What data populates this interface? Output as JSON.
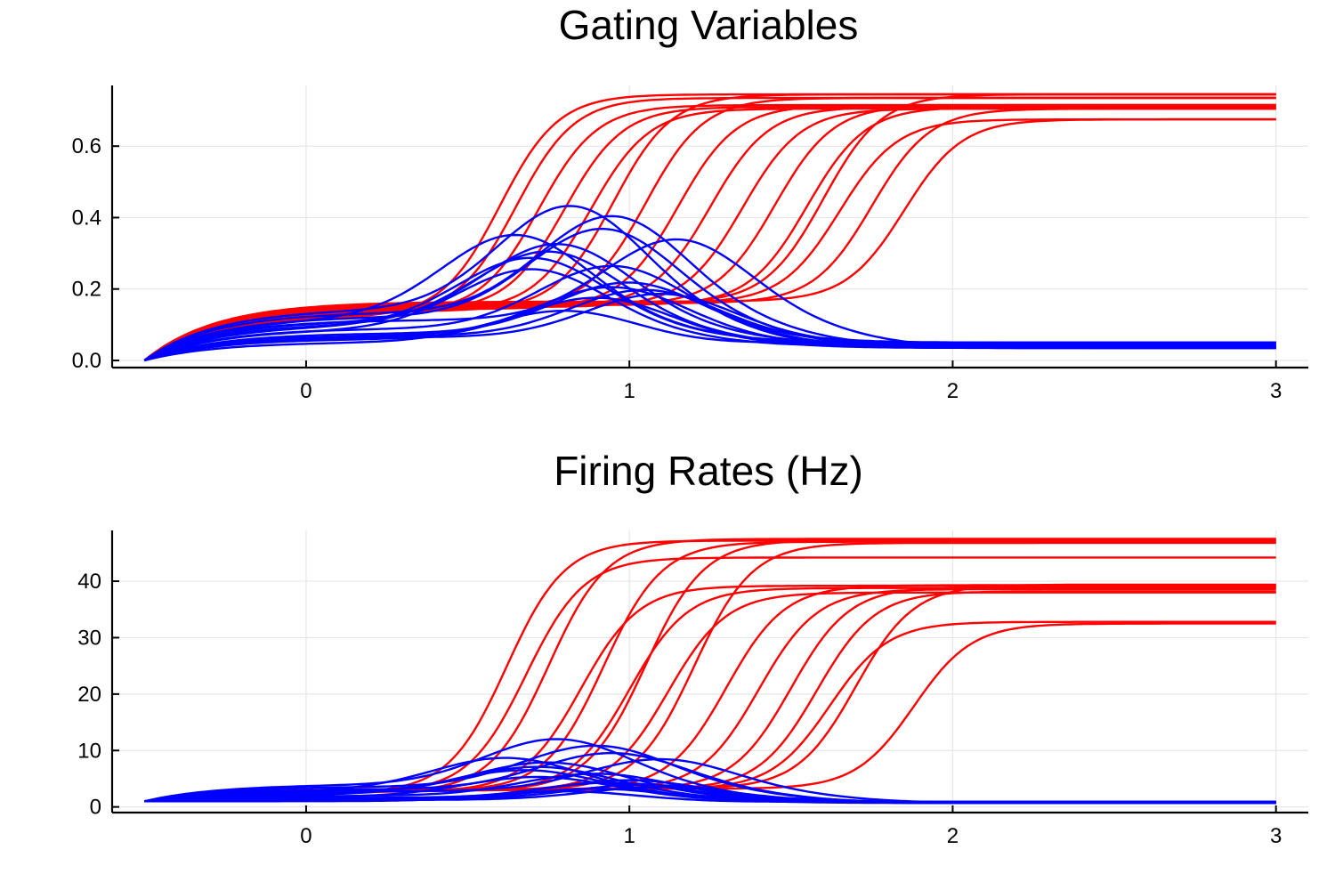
{
  "chart_data": [
    {
      "type": "line",
      "title": "Gating Variables",
      "xlabel": "",
      "ylabel": "",
      "xlim": [
        -0.6,
        3.1
      ],
      "ylim": [
        -0.02,
        0.77
      ],
      "xticks": [
        0,
        1,
        2,
        3
      ],
      "xtick_labels": [
        "0",
        "1",
        "2",
        "3"
      ],
      "yticks": [
        0.0,
        0.2,
        0.4,
        0.6
      ],
      "ytick_labels": [
        "0.0",
        "0.2",
        "0.4",
        "0.6"
      ],
      "grid": true,
      "legend": "none",
      "colors": {
        "rising": "#ff0000",
        "transient": "#0000ff"
      },
      "series_groups": [
        {
          "color": "#ff0000",
          "kind": "rising",
          "shared_start": {
            "x": -0.5,
            "y": 0.0
          },
          "curves": [
            {
              "x0": 0.6,
              "plateau": 0.745,
              "low": 0.125
            },
            {
              "x0": 0.65,
              "plateau": 0.735,
              "low": 0.13
            },
            {
              "x0": 0.72,
              "plateau": 0.715,
              "low": 0.135
            },
            {
              "x0": 0.8,
              "plateau": 0.71,
              "low": 0.14
            },
            {
              "x0": 0.88,
              "plateau": 0.705,
              "low": 0.14
            },
            {
              "x0": 0.95,
              "plateau": 0.745,
              "low": 0.14
            },
            {
              "x0": 1.05,
              "plateau": 0.735,
              "low": 0.145
            },
            {
              "x0": 1.15,
              "plateau": 0.715,
              "low": 0.145
            },
            {
              "x0": 1.25,
              "plateau": 0.71,
              "low": 0.15
            },
            {
              "x0": 1.35,
              "plateau": 0.705,
              "low": 0.15
            },
            {
              "x0": 1.45,
              "plateau": 0.715,
              "low": 0.155
            },
            {
              "x0": 1.55,
              "plateau": 0.71,
              "low": 0.155
            },
            {
              "x0": 1.6,
              "plateau": 0.745,
              "low": 0.16
            },
            {
              "x0": 1.65,
              "plateau": 0.675,
              "low": 0.16
            },
            {
              "x0": 1.75,
              "plateau": 0.705,
              "low": 0.16
            },
            {
              "x0": 1.85,
              "plateau": 0.675,
              "low": 0.165
            }
          ]
        },
        {
          "color": "#0000ff",
          "kind": "transient",
          "shared_start": {
            "x": -0.5,
            "y": 0.0
          },
          "curves": [
            {
              "peak": 0.43,
              "peak_x": 0.82,
              "end": 0.035
            },
            {
              "peak": 0.4,
              "peak_x": 0.95,
              "end": 0.04
            },
            {
              "peak": 0.365,
              "peak_x": 0.92,
              "end": 0.035
            },
            {
              "peak": 0.345,
              "peak_x": 0.65,
              "end": 0.05
            },
            {
              "peak": 0.335,
              "peak_x": 1.15,
              "end": 0.035
            },
            {
              "peak": 0.32,
              "peak_x": 0.78,
              "end": 0.045
            },
            {
              "peak": 0.3,
              "peak_x": 0.75,
              "end": 0.04
            },
            {
              "peak": 0.28,
              "peak_x": 0.7,
              "end": 0.05
            },
            {
              "peak": 0.26,
              "peak_x": 0.95,
              "end": 0.035
            },
            {
              "peak": 0.25,
              "peak_x": 0.7,
              "end": 0.04
            },
            {
              "peak": 0.21,
              "peak_x": 1.0,
              "end": 0.05
            },
            {
              "peak": 0.2,
              "peak_x": 0.95,
              "end": 0.035
            },
            {
              "peak": 0.19,
              "peak_x": 1.05,
              "end": 0.045
            },
            {
              "peak": 0.18,
              "peak_x": 1.1,
              "end": 0.04
            },
            {
              "peak": 0.17,
              "peak_x": 0.9,
              "end": 0.035
            },
            {
              "peak": 0.13,
              "peak_x": 0.8,
              "end": 0.05
            }
          ]
        }
      ]
    },
    {
      "type": "line",
      "title": "Firing Rates (Hz)",
      "xlabel": "",
      "ylabel": "",
      "xlim": [
        -0.6,
        3.1
      ],
      "ylim": [
        -1,
        49
      ],
      "xticks": [
        0,
        1,
        2,
        3
      ],
      "xtick_labels": [
        "0",
        "1",
        "2",
        "3"
      ],
      "yticks": [
        0,
        10,
        20,
        30,
        40
      ],
      "ytick_labels": [
        "0",
        "10",
        "20",
        "30",
        "40"
      ],
      "grid": true,
      "legend": "none",
      "colors": {
        "rising": "#ff0000",
        "transient": "#0000ff"
      },
      "series_groups": [
        {
          "color": "#ff0000",
          "kind": "rising",
          "shared_start": {
            "x": -0.5,
            "y": 1.0
          },
          "curves": [
            {
              "x0": 0.62,
              "plateau": 47.2,
              "low": 2.5
            },
            {
              "x0": 0.68,
              "plateau": 44.2,
              "low": 2.6
            },
            {
              "x0": 0.75,
              "plateau": 47.5,
              "low": 2.6
            },
            {
              "x0": 0.85,
              "plateau": 39.2,
              "low": 2.7
            },
            {
              "x0": 0.92,
              "plateau": 47.0,
              "low": 2.8
            },
            {
              "x0": 1.0,
              "plateau": 38.8,
              "low": 2.8
            },
            {
              "x0": 1.05,
              "plateau": 47.3,
              "low": 2.9
            },
            {
              "x0": 1.12,
              "plateau": 38.0,
              "low": 2.9
            },
            {
              "x0": 1.2,
              "plateau": 46.8,
              "low": 3.0
            },
            {
              "x0": 1.3,
              "plateau": 39.3,
              "low": 3.0
            },
            {
              "x0": 1.4,
              "plateau": 38.6,
              "low": 3.0
            },
            {
              "x0": 1.5,
              "plateau": 39.0,
              "low": 3.1
            },
            {
              "x0": 1.58,
              "plateau": 38.2,
              "low": 3.1
            },
            {
              "x0": 1.62,
              "plateau": 32.8,
              "low": 3.1
            },
            {
              "x0": 1.7,
              "plateau": 39.4,
              "low": 3.2
            },
            {
              "x0": 1.88,
              "plateau": 32.5,
              "low": 3.2
            }
          ]
        },
        {
          "color": "#0000ff",
          "kind": "transient",
          "shared_start": {
            "x": -0.5,
            "y": 1.0
          },
          "curves": [
            {
              "peak": 12.0,
              "peak_x": 0.78,
              "end": 0.7
            },
            {
              "peak": 10.8,
              "peak_x": 0.9,
              "end": 0.8
            },
            {
              "peak": 9.5,
              "peak_x": 0.95,
              "end": 0.7
            },
            {
              "peak": 8.6,
              "peak_x": 0.62,
              "end": 0.9
            },
            {
              "peak": 8.4,
              "peak_x": 1.1,
              "end": 0.7
            },
            {
              "peak": 7.8,
              "peak_x": 0.75,
              "end": 0.8
            },
            {
              "peak": 7.0,
              "peak_x": 0.72,
              "end": 0.8
            },
            {
              "peak": 6.4,
              "peak_x": 0.68,
              "end": 0.9
            },
            {
              "peak": 5.8,
              "peak_x": 0.9,
              "end": 0.7
            },
            {
              "peak": 5.2,
              "peak_x": 0.72,
              "end": 0.8
            },
            {
              "peak": 4.6,
              "peak_x": 1.0,
              "end": 0.9
            },
            {
              "peak": 4.2,
              "peak_x": 0.95,
              "end": 0.7
            },
            {
              "peak": 3.8,
              "peak_x": 1.05,
              "end": 0.8
            },
            {
              "peak": 3.4,
              "peak_x": 1.1,
              "end": 0.8
            },
            {
              "peak": 3.1,
              "peak_x": 0.9,
              "end": 0.7
            },
            {
              "peak": 2.6,
              "peak_x": 0.8,
              "end": 0.9
            }
          ]
        }
      ]
    }
  ]
}
